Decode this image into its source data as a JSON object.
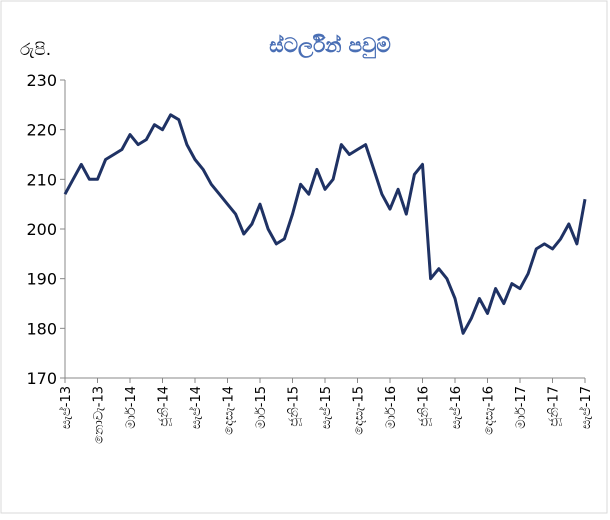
{
  "chart_data": {
    "type": "line",
    "title": "ස්ටර්ලින් පවුම්",
    "y_label": "රුපි.",
    "categories": [
      "සැප්-13",
      null,
      null,
      null,
      "නොවැ-13",
      null,
      null,
      null,
      "මාර්-14",
      null,
      null,
      null,
      "ජූනි-14",
      null,
      null,
      null,
      "සැප්-14",
      null,
      null,
      null,
      "දෙසැ-14",
      null,
      null,
      null,
      "මාර්-15",
      null,
      null,
      null,
      "ජූනි-15",
      null,
      null,
      null,
      "සැප්-15",
      null,
      null,
      null,
      "දෙසැ-15",
      null,
      null,
      null,
      "මාර්-16",
      null,
      null,
      null,
      "ජූනි-16",
      null,
      null,
      null,
      "සැප්-16",
      null,
      null,
      null,
      "දෙසැ-16",
      null,
      null,
      null,
      "මාර්-17",
      null,
      null,
      null,
      "ජූනි-17",
      null,
      null,
      null,
      "සැප්-17"
    ],
    "series": [
      {
        "color": "#1f3264",
        "values": [
          207,
          210,
          213,
          210,
          210,
          214,
          215,
          216,
          219,
          217,
          218,
          221,
          220,
          223,
          222,
          217,
          214,
          212,
          209,
          207,
          205,
          203,
          199,
          201,
          205,
          200,
          197,
          198,
          203,
          209,
          207,
          212,
          208,
          210,
          217,
          215,
          216,
          217,
          212,
          207,
          204,
          208,
          203,
          211,
          213,
          190,
          192,
          190,
          186,
          179,
          182,
          186,
          183,
          188,
          185,
          189,
          188,
          191,
          196,
          197,
          196,
          198,
          201,
          197,
          206
        ]
      }
    ],
    "ylim": [
      170,
      230
    ],
    "yticks": [
      170,
      180,
      190,
      200,
      210,
      220,
      230
    ],
    "title_color": "#4a6fb5"
  }
}
